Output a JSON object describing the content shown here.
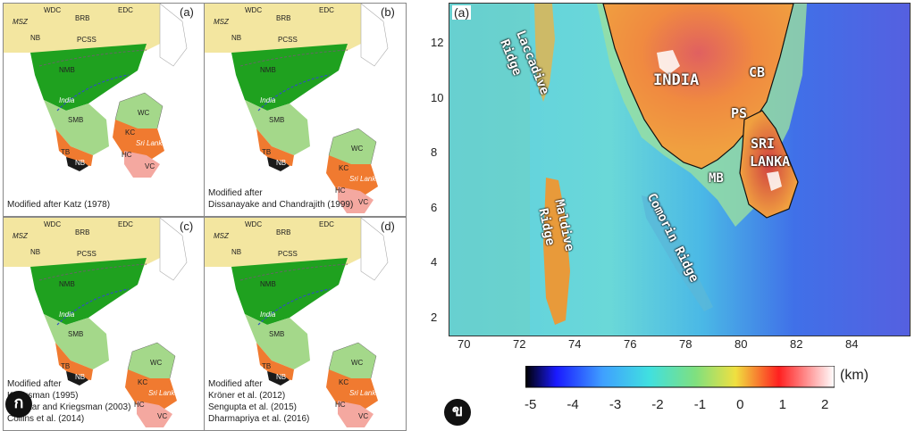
{
  "left_panels": [
    {
      "tag": "(a)",
      "captions": [
        "Modified after Katz (1978)"
      ]
    },
    {
      "tag": "(b)",
      "captions": [
        "Modified after",
        "Dissanayake and Chandrajith (1999)"
      ]
    },
    {
      "tag": "(c)",
      "captions": [
        "Modified after",
        "Kriegsman (1995)",
        "Bhaskar and Kriegsman (2003)",
        "Collins et al. (2014)"
      ]
    },
    {
      "tag": "(d)",
      "captions": [
        "Modified after",
        "Kröner et al. (2012)",
        "Sengupta et al. (2015)",
        "Dharmapriya et al. (2016)"
      ]
    }
  ],
  "region_labels": {
    "wdc": "WDC",
    "brb": "BRB",
    "edc": "EDC",
    "msz": "MSZ",
    "nb": "NB",
    "pcss": "PCSS",
    "nmb": "NMB",
    "india": "India",
    "smb": "SMB",
    "tb": "TB",
    "nb2": "NB",
    "wc": "WC",
    "kc": "KC",
    "hc": "HC",
    "vc": "VC",
    "sri_lanka": "Sri Lanka"
  },
  "badges": {
    "left": "ก",
    "right": "ข"
  },
  "map": {
    "tag": "(a)",
    "labels": {
      "india": "INDIA",
      "cb": "CB",
      "ps": "PS",
      "sri": "SRI",
      "lanka": "LANKA",
      "mb": "MB",
      "laccadive": "Laccadive",
      "laccadive_ridge": "Ridge",
      "maldive": "Maldive",
      "maldive_ridge": "Ridge",
      "comorin": "Comorin Ridge"
    },
    "x_ticks": [
      "70",
      "72",
      "74",
      "76",
      "78",
      "80",
      "82",
      "84"
    ],
    "y_ticks": [
      "12",
      "10",
      "8",
      "6",
      "4",
      "2"
    ]
  },
  "colorbar": {
    "unit": "(km)",
    "ticks": [
      "-5",
      "-4",
      "-3",
      "-2",
      "-1",
      "0",
      "1",
      "2"
    ],
    "range": [
      -5,
      2
    ],
    "colors": [
      "#000000",
      "#1a1aff",
      "#3fa0ff",
      "#40e0e0",
      "#7fe07f",
      "#f0e040",
      "#ff2020",
      "#ffffff"
    ]
  }
}
